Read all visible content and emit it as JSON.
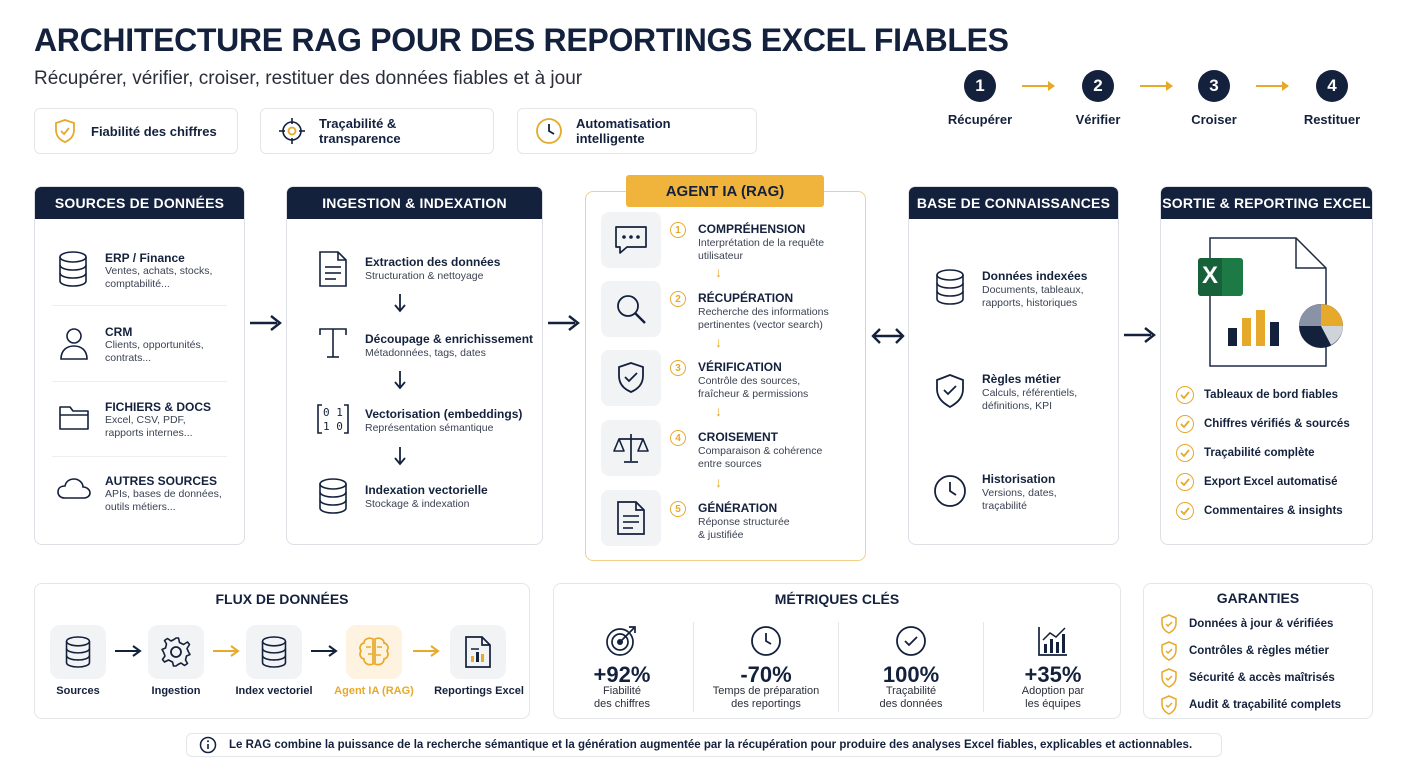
{
  "header": {
    "title": "ARCHITECTURE RAG POUR DES REPORTINGS EXCEL FIABLES",
    "subtitle": "Récupérer, vérifier, croiser, restituer des données fiables et à jour"
  },
  "pills": [
    {
      "label": "Fiabilité des chiffres",
      "icon": "shield-check-icon"
    },
    {
      "label": "Traçabilité & transparence",
      "icon": "target-icon"
    },
    {
      "label": "Automatisation intelligente",
      "icon": "clock-icon"
    }
  ],
  "steps": [
    {
      "num": "1",
      "label": "Récupérer"
    },
    {
      "num": "2",
      "label": "Vérifier"
    },
    {
      "num": "3",
      "label": "Croiser"
    },
    {
      "num": "4",
      "label": "Restituer"
    }
  ],
  "sources": {
    "title": "SOURCES DE DONNÉES",
    "items": [
      {
        "title": "ERP / Finance",
        "desc1": "Ventes, achats, stocks,",
        "desc2": "comptabilité...",
        "icon": "database-icon"
      },
      {
        "title": "CRM",
        "desc1": "Clients, opportunités,",
        "desc2": "contrats...",
        "icon": "user-icon"
      },
      {
        "title": "FICHIERS & DOCS",
        "desc1": "Excel, CSV, PDF,",
        "desc2": "rapports internes...",
        "icon": "folder-icon"
      },
      {
        "title": "AUTRES SOURCES",
        "desc1": "APIs, bases de données,",
        "desc2": "outils métiers...",
        "icon": "cloud-icon"
      }
    ]
  },
  "ingestion": {
    "title": "INGESTION & INDEXATION",
    "items": [
      {
        "title": "Extraction des données",
        "desc": "Structuration & nettoyage",
        "icon": "document-icon"
      },
      {
        "title": "Découpage & enrichissement",
        "desc": "Métadonnées, tags, dates",
        "icon": "text-icon"
      },
      {
        "title": "Vectorisation (embeddings)",
        "desc": "Représentation sémantique",
        "icon": "binary-icon"
      },
      {
        "title": "Indexation vectorielle",
        "desc": "Stockage & indexation",
        "icon": "database-icon"
      }
    ]
  },
  "agent": {
    "title": "AGENT IA (RAG)",
    "items": [
      {
        "num": "1",
        "title": "COMPRÉHENSION",
        "desc1": "Interprétation de la requête",
        "desc2": "utilisateur",
        "icon": "chat-icon"
      },
      {
        "num": "2",
        "title": "RÉCUPÉRATION",
        "desc1": "Recherche des informations",
        "desc2": "pertinentes (vector search)",
        "icon": "search-icon"
      },
      {
        "num": "3",
        "title": "VÉRIFICATION",
        "desc1": "Contrôle des sources,",
        "desc2": "fraîcheur & permissions",
        "icon": "shield-check-icon"
      },
      {
        "num": "4",
        "title": "CROISEMENT",
        "desc1": "Comparaison & cohérence",
        "desc2": "entre sources",
        "icon": "scale-icon"
      },
      {
        "num": "5",
        "title": "GÉNÉRATION",
        "desc1": "Réponse structurée",
        "desc2": "& justifiée",
        "icon": "report-icon"
      }
    ]
  },
  "knowledge": {
    "title": "BASE DE CONNAISSANCES",
    "items": [
      {
        "title": "Données indexées",
        "desc1": "Documents, tableaux,",
        "desc2": "rapports, historiques",
        "icon": "database-icon"
      },
      {
        "title": "Règles métier",
        "desc1": "Calculs, référentiels,",
        "desc2": "définitions, KPI",
        "icon": "shield-check-icon"
      },
      {
        "title": "Historisation",
        "desc1": "Versions, dates,",
        "desc2": "traçabilité",
        "icon": "clock-icon"
      }
    ]
  },
  "output": {
    "title": "SORTIE & REPORTING EXCEL",
    "excel_letter": "X",
    "items": [
      "Tableaux de bord fiables",
      "Chiffres vérifiés & sourcés",
      "Traçabilité complète",
      "Export Excel automatisé",
      "Commentaires & insights"
    ]
  },
  "flux": {
    "title": "FLUX DE DONNÉES",
    "items": [
      {
        "label": "Sources",
        "icon": "database-icon",
        "highlight": false
      },
      {
        "label": "Ingestion",
        "icon": "gear-icon",
        "highlight": false
      },
      {
        "label": "Index vectoriel",
        "icon": "database-icon",
        "highlight": false
      },
      {
        "label": "Agent IA (RAG)",
        "icon": "brain-icon",
        "highlight": true
      },
      {
        "label": "Reportings Excel",
        "icon": "report-icon",
        "highlight": false
      }
    ]
  },
  "metrics": {
    "title": "MÉTRIQUES CLÉS",
    "items": [
      {
        "value": "+92%",
        "label1": "Fiabilité",
        "label2": "des chiffres",
        "icon": "target-icon"
      },
      {
        "value": "-70%",
        "label1": "Temps de préparation",
        "label2": "des reportings",
        "icon": "clock-icon"
      },
      {
        "value": "100%",
        "label1": "Traçabilité",
        "label2": "des données",
        "icon": "check-circle-icon"
      },
      {
        "value": "+35%",
        "label1": "Adoption par",
        "label2": "les équipes",
        "icon": "bar-chart-icon"
      }
    ]
  },
  "guarantees": {
    "title": "GARANTIES",
    "items": [
      "Données à jour & vérifiées",
      "Contrôles & règles métier",
      "Sécurité & accès maîtrisés",
      "Audit & traçabilité complets"
    ]
  },
  "footer": {
    "text": "Le RAG combine la puissance de la recherche sémantique et la génération augmentée par la récupération pour produire des analyses Excel fiables, explicables et actionnables.",
    "icon": "info-icon"
  },
  "colors": {
    "navy": "#14213d",
    "gold": "#e6a92a",
    "excel_green": "#1d7a45"
  }
}
